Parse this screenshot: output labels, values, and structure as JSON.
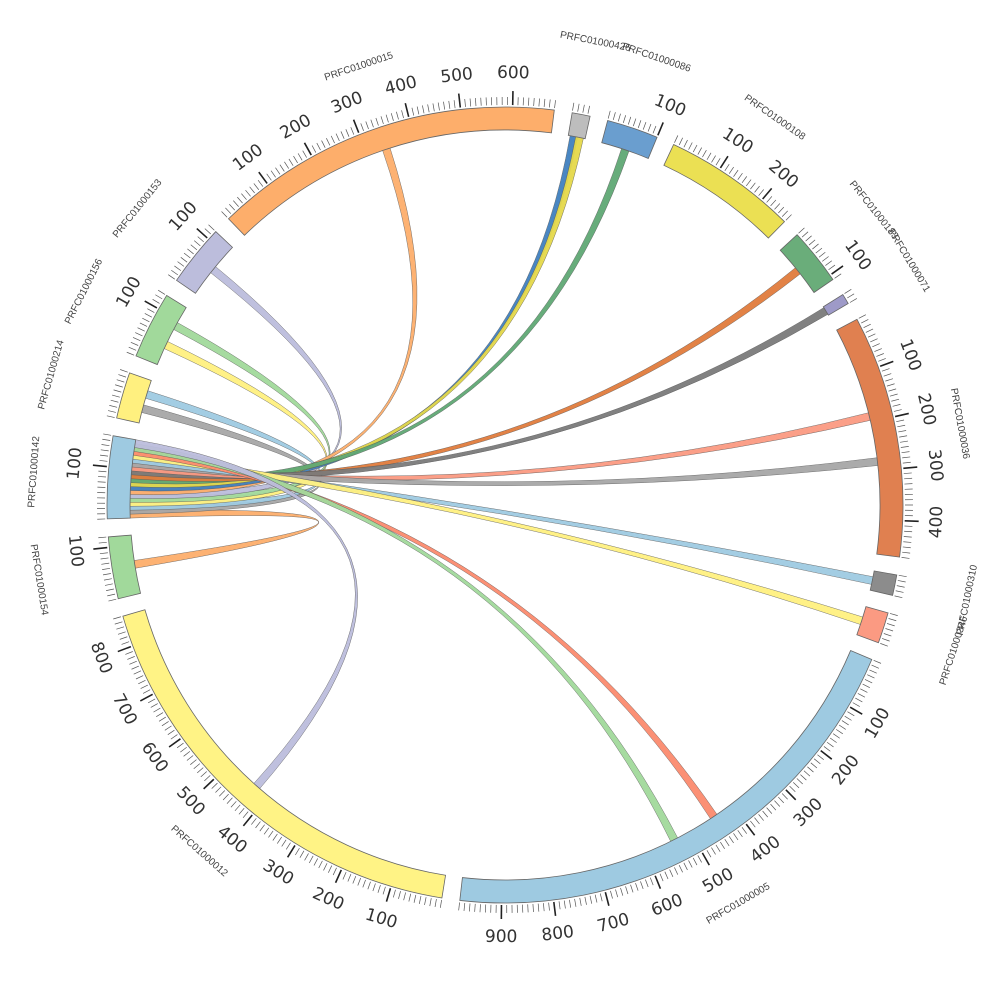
{
  "chart_data": {
    "type": "chord",
    "grid": false,
    "segments": [
      {
        "name": "PRFC01000142",
        "length": 160,
        "color": "#9ecae1",
        "ticks": [
          100
        ]
      },
      {
        "name": "PRFC01000214",
        "length": 90,
        "color": "#fff07f",
        "ticks": []
      },
      {
        "name": "PRFC01000156",
        "length": 130,
        "color": "#a1d99b",
        "ticks": [
          100
        ]
      },
      {
        "name": "PRFC01000153",
        "length": 120,
        "color": "#bcbddc",
        "ticks": [
          100
        ]
      },
      {
        "name": "PRFC01000015",
        "length": 680,
        "color": "#fdae6b",
        "ticks": [
          100,
          200,
          300,
          400,
          500,
          600
        ]
      },
      {
        "name": "PRFC01000426",
        "length": 35,
        "color": "#bdbdbd",
        "ticks": []
      },
      {
        "name": "PRFC01000086",
        "length": 100,
        "color": "#6a9ecf",
        "ticks": [
          100
        ]
      },
      {
        "name": "PRFC01000108",
        "length": 260,
        "color": "#ebe053",
        "ticks": [
          100,
          200
        ]
      },
      {
        "name": "PRFC01000183",
        "length": 110,
        "color": "#6aad7a",
        "ticks": [
          100
        ]
      },
      {
        "name": "PRFC01000071",
        "length": 20,
        "color": "#9e9ac8",
        "ticks": []
      },
      {
        "name": "PRFC01000036",
        "length": 470,
        "color": "#e08050",
        "ticks": [
          100,
          200,
          300,
          400
        ]
      },
      {
        "name": "PRFC01000310",
        "length": 40,
        "color": "#8c8c8c",
        "ticks": []
      },
      {
        "name": "PRFC01000346",
        "length": 60,
        "color": "#fb9a82",
        "ticks": []
      },
      {
        "name": "PRFC01000005",
        "length": 980,
        "color": "#9ecae1",
        "ticks": [
          100,
          200,
          300,
          400,
          500,
          600,
          700,
          800,
          900
        ]
      },
      {
        "name": "PRFC01000012",
        "length": 860,
        "color": "#fff385",
        "ticks": [
          100,
          200,
          300,
          400,
          500,
          600,
          700,
          800
        ]
      },
      {
        "name": "PRFC01000154",
        "length": 120,
        "color": "#a1d99b",
        "ticks": [
          100
        ]
      }
    ],
    "links": [
      {
        "source": "PRFC01000154",
        "target": "PRFC01000142",
        "color": "#fdae6b"
      },
      {
        "source": "PRFC01000214",
        "target": "PRFC01000142",
        "color": "#a6a6a6"
      },
      {
        "source": "PRFC01000214",
        "target": "PRFC01000142",
        "color": "#9ecae1"
      },
      {
        "source": "PRFC01000156",
        "target": "PRFC01000142",
        "color": "#fff07f"
      },
      {
        "source": "PRFC01000156",
        "target": "PRFC01000142",
        "color": "#a1d99b"
      },
      {
        "source": "PRFC01000153",
        "target": "PRFC01000142",
        "color": "#bcbddc"
      },
      {
        "source": "PRFC01000015",
        "target": "PRFC01000142",
        "color": "#fdae6b"
      },
      {
        "source": "PRFC01000426",
        "target": "PRFC01000142",
        "color": "#3f7fbf"
      },
      {
        "source": "PRFC01000426",
        "target": "PRFC01000142",
        "color": "#e5d84a"
      },
      {
        "source": "PRFC01000086",
        "target": "PRFC01000142",
        "color": "#5fa874"
      },
      {
        "source": "PRFC01000183",
        "target": "PRFC01000142",
        "color": "#e07b3c"
      },
      {
        "source": "PRFC01000071",
        "target": "PRFC01000142",
        "color": "#7a7a7a"
      },
      {
        "source": "PRFC01000036",
        "target": "PRFC01000142",
        "color": "#fb9a82"
      },
      {
        "source": "PRFC01000036",
        "target": "PRFC01000142",
        "color": "#a6a6a6"
      },
      {
        "source": "PRFC01000310",
        "target": "PRFC01000142",
        "color": "#9ecae1"
      },
      {
        "source": "PRFC01000346",
        "target": "PRFC01000142",
        "color": "#fff07f"
      },
      {
        "source": "PRFC01000005",
        "target": "PRFC01000142",
        "color": "#fb8a6e"
      },
      {
        "source": "PRFC01000005",
        "target": "PRFC01000142",
        "color": "#a1d99b"
      },
      {
        "source": "PRFC01000012",
        "target": "PRFC01000142",
        "color": "#bcbddc"
      }
    ]
  }
}
